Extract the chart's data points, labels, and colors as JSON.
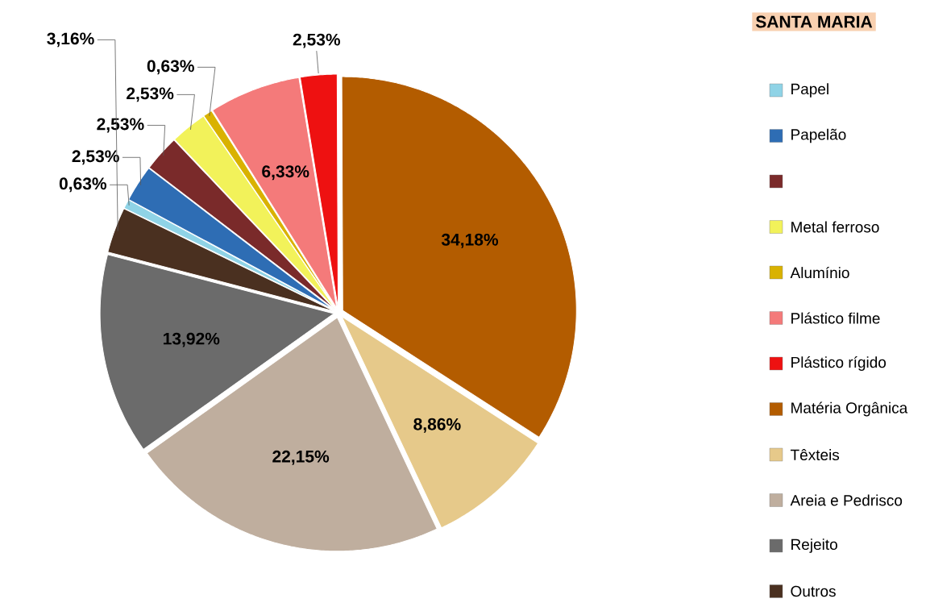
{
  "chart_data": {
    "type": "pie",
    "title": "SANTA MARIA",
    "categories": [
      "Papel",
      "Papelão",
      null,
      "Metal ferroso",
      "Alumínio",
      "Plástico filme",
      "Plástico rígido",
      "Matéria Orgânica",
      "Têxteis",
      "Areia e Pedrisco",
      "Rejeito",
      "Outros"
    ],
    "values": [
      0.63,
      2.53,
      2.53,
      2.53,
      0.63,
      6.33,
      2.53,
      34.18,
      8.86,
      22.15,
      13.92,
      3.16
    ],
    "colors": [
      "#8fd3e6",
      "#2e6db4",
      "#7a2a2a",
      "#f2f25a",
      "#d9b200",
      "#f47a7a",
      "#ee1111",
      "#b35c00",
      "#e6c98a",
      "#bfae9e",
      "#6b6b6b",
      "#4a3020"
    ],
    "value_labels": [
      "0,63%",
      "2,53%",
      "2,53%",
      "2,53%",
      "0,63%",
      "6,33%",
      "2,53%",
      "34,18%",
      "8,86%",
      "22,15%",
      "13,92%",
      "3,16%"
    ],
    "legend": "right"
  }
}
